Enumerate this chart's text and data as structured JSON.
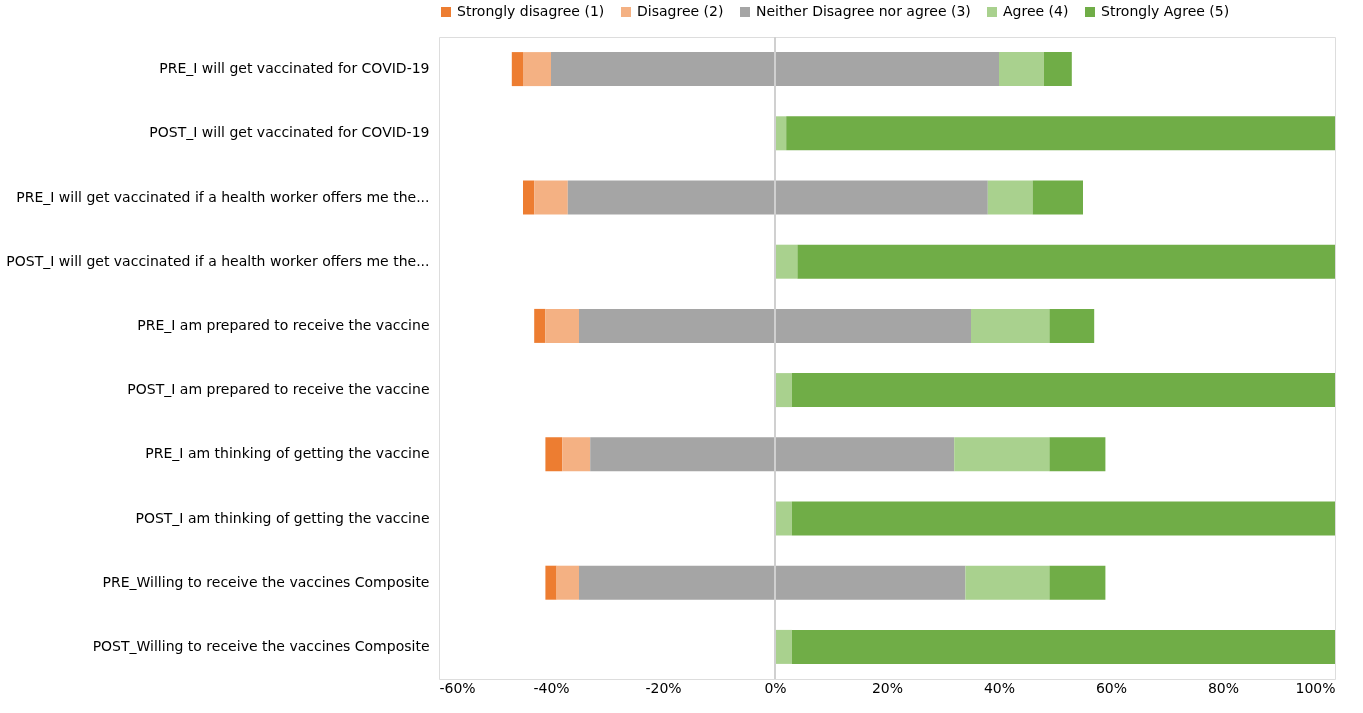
{
  "chart_data": {
    "type": "bar",
    "orientation": "horizontal",
    "categories": [
      "PRE_I will get vaccinated for COVID-19",
      "POST_I will get vaccinated for COVID-19",
      "PRE_I will get vaccinated if a health worker offers me the...",
      "POST_I will get vaccinated if a health worker offers me the...",
      "PRE_I am prepared to receive the vaccine",
      "POST_I am prepared to receive the vaccine",
      "PRE_I am thinking of getting the vaccine",
      "POST_I am thinking of getting the vaccine",
      "PRE_Willing to receive the vaccines Composite",
      "POST_Willing to receive the vaccines Composite"
    ],
    "series": [
      {
        "name": "Strongly disagree (1)",
        "color": "#ed7d31",
        "base": [
          -47,
          null,
          -45,
          null,
          -43,
          null,
          -41,
          null,
          -41,
          null
        ],
        "values": [
          2,
          null,
          2,
          null,
          2,
          null,
          3,
          null,
          2,
          null
        ]
      },
      {
        "name": "Disagree (2)",
        "color": "#f4b183",
        "base": [
          -45,
          null,
          -43,
          null,
          -41,
          null,
          -38,
          null,
          -39,
          null
        ],
        "values": [
          5,
          null,
          6,
          null,
          6,
          null,
          5,
          null,
          4,
          null
        ]
      },
      {
        "name": "Neither Disagree nor agree (3)",
        "color": "#a5a5a5",
        "base": [
          -40,
          null,
          -37,
          null,
          -35,
          null,
          -33,
          null,
          -35,
          null
        ],
        "values": [
          80,
          null,
          75,
          null,
          70,
          null,
          65,
          null,
          69,
          null
        ]
      },
      {
        "name": "Agree (4)",
        "color": "#a9d18e",
        "base": [
          40,
          0,
          38,
          0,
          35,
          0,
          32,
          0,
          34,
          0
        ],
        "values": [
          8,
          2,
          8,
          4,
          14,
          3,
          17,
          3,
          15,
          3
        ]
      },
      {
        "name": "Strongly Agree (5)",
        "color": "#70ad47",
        "base": [
          48,
          2,
          46,
          4,
          49,
          3,
          49,
          3,
          49,
          3
        ],
        "values": [
          5,
          98,
          9,
          96,
          8,
          97,
          10,
          97,
          10,
          97
        ]
      }
    ],
    "xlim": [
      -60,
      100
    ],
    "xticks": [
      {
        "value": -60,
        "label": "-60%"
      },
      {
        "value": -40,
        "label": "-40%"
      },
      {
        "value": -20,
        "label": "-20%"
      },
      {
        "value": 0,
        "label": "0%"
      },
      {
        "value": 20,
        "label": "20%"
      },
      {
        "value": 40,
        "label": "40%"
      },
      {
        "value": 60,
        "label": "60%"
      },
      {
        "value": 80,
        "label": "80%"
      },
      {
        "value": 100,
        "label": "100%"
      }
    ],
    "ref_lines": [
      {
        "axis": "x",
        "value": 0,
        "color": "#d0d0d0"
      }
    ],
    "grid": false,
    "legend": "top"
  }
}
